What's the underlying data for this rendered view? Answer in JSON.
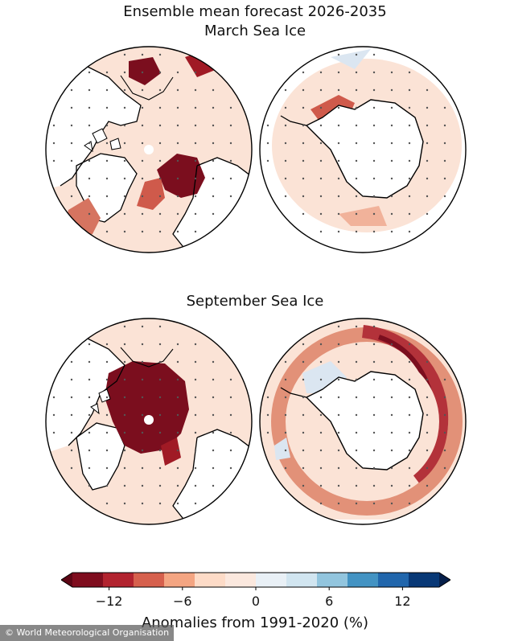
{
  "header": {
    "title": "Ensemble mean forecast 2026-2035",
    "march_title": "March Sea Ice",
    "september_title": "September Sea Ice"
  },
  "colorbar": {
    "ticks": [
      "−12",
      "−6",
      "0",
      "6",
      "12"
    ],
    "tick_values": [
      -12,
      -6,
      0,
      6,
      12
    ],
    "range": [
      -15,
      15
    ],
    "colors": [
      "#7f0d1e",
      "#b2232f",
      "#d6604d",
      "#f4a582",
      "#fddbc7",
      "#fbe8de",
      "#e9f0f6",
      "#d1e5f0",
      "#92c5de",
      "#4393c3",
      "#2166ac",
      "#083876"
    ],
    "label": "Anomalies from 1991-2020 (%)"
  },
  "credit": "© World Meteorological Organisation",
  "colors": {
    "land": "#ffffff",
    "background_anomaly": "#fbe3d6",
    "strong_loss": "#7b0e1e",
    "moderate_loss": "#cf5a4b",
    "light_loss": "#eda38c",
    "slight_gain": "#dbe6f1",
    "coastline": "#000000",
    "stipple": "#555555"
  },
  "panels": [
    {
      "id": "nh-march",
      "hemisphere": "north",
      "month": "March"
    },
    {
      "id": "sh-march",
      "hemisphere": "south",
      "month": "March"
    },
    {
      "id": "nh-september",
      "hemisphere": "north",
      "month": "September"
    },
    {
      "id": "sh-september",
      "hemisphere": "south",
      "month": "September"
    }
  ]
}
